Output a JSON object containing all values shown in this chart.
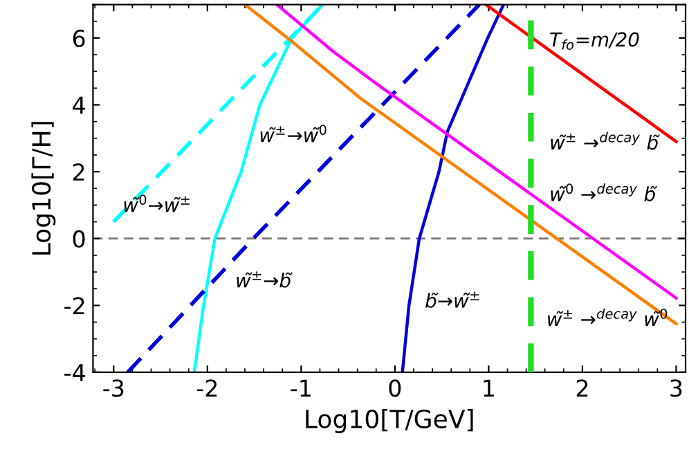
{
  "chart_data": {
    "type": "line",
    "xlabel": "Log10[T/GeV]",
    "ylabel": "Log10[Γ/H]",
    "xlim": [
      -3.22,
      3.1
    ],
    "ylim": [
      -4,
      7
    ],
    "xticks": [
      -3,
      -2,
      -1,
      0,
      1,
      2,
      3
    ],
    "yticks": [
      -4,
      -2,
      0,
      2,
      4,
      6
    ],
    "grid": false,
    "marker": "none",
    "series": [
      {
        "color": "#00ffff",
        "line_style": "dashed",
        "x": [
          -3.0,
          -0.77
        ],
        "values": [
          0.5,
          7
        ]
      },
      {
        "color": "#00ffff",
        "line_style": "solid",
        "x": [
          -2.14,
          -2.04,
          -1.92,
          -1.64,
          -1.44,
          -1.1,
          -0.77
        ],
        "values": [
          -4,
          -2,
          0,
          2,
          4,
          6,
          7
        ]
      },
      {
        "color": "#0000dd",
        "line_style": "dashed",
        "x": [
          -2.85,
          -1.51,
          0.9
        ],
        "values": [
          -4,
          0,
          7
        ]
      },
      {
        "color": "#0000dd",
        "line_style": "solid",
        "x": [
          0.08,
          0.15,
          0.26,
          0.47,
          0.56,
          0.99,
          1.16
        ],
        "values": [
          -4,
          -2,
          0,
          2,
          3.2,
          6,
          7
        ]
      },
      {
        "color": "#ff0000",
        "line_style": "solid",
        "x": [
          0.97,
          3.0
        ],
        "values": [
          7,
          2.9
        ]
      },
      {
        "color": "#ff00ff",
        "line_style": "solid",
        "x": [
          -1.26,
          -0.66,
          -0.23,
          3.0
        ],
        "values": [
          7,
          5.6,
          4.7,
          -1.78
        ]
      },
      {
        "color": "#ff8000",
        "line_style": "solid",
        "x": [
          -1.6,
          -1.1,
          -0.37,
          3.0
        ],
        "values": [
          7,
          5.9,
          4.2,
          -2.55
        ]
      }
    ],
    "ref_lines": [
      {
        "axis": "y",
        "value": 0,
        "color": "#777777",
        "line_style": "dashed"
      },
      {
        "axis": "x",
        "value": 1.45,
        "color": "#22dd22",
        "line_style": "dashed"
      }
    ],
    "annotations": [
      "w̃$^{0}$→w̃$^{±}$",
      "w̃$^{±}$→w̃$^{0}$",
      "w̃$^{±}$→b̃",
      "b̃→w̃$^{±}$",
      "T$_{fo}$=m/20",
      "w̃$^{±}$ →$^{decay}$ b̃",
      "w̃$^{0}$ →$^{decay}$ b̃",
      "w̃$^{±}$ →$^{decay}$ w̃$^{0}$"
    ]
  }
}
